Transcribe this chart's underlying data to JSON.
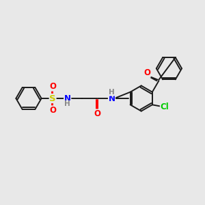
{
  "bg_color": "#e8e8e8",
  "bond_color": "#1a1a1a",
  "atom_colors": {
    "S": "#cccc00",
    "N": "#0000ff",
    "O": "#ff0000",
    "Cl": "#00cc00",
    "H": "#888888"
  },
  "lw": 1.4,
  "fs": 8.5,
  "figsize": [
    3.0,
    3.0
  ],
  "dpi": 100
}
